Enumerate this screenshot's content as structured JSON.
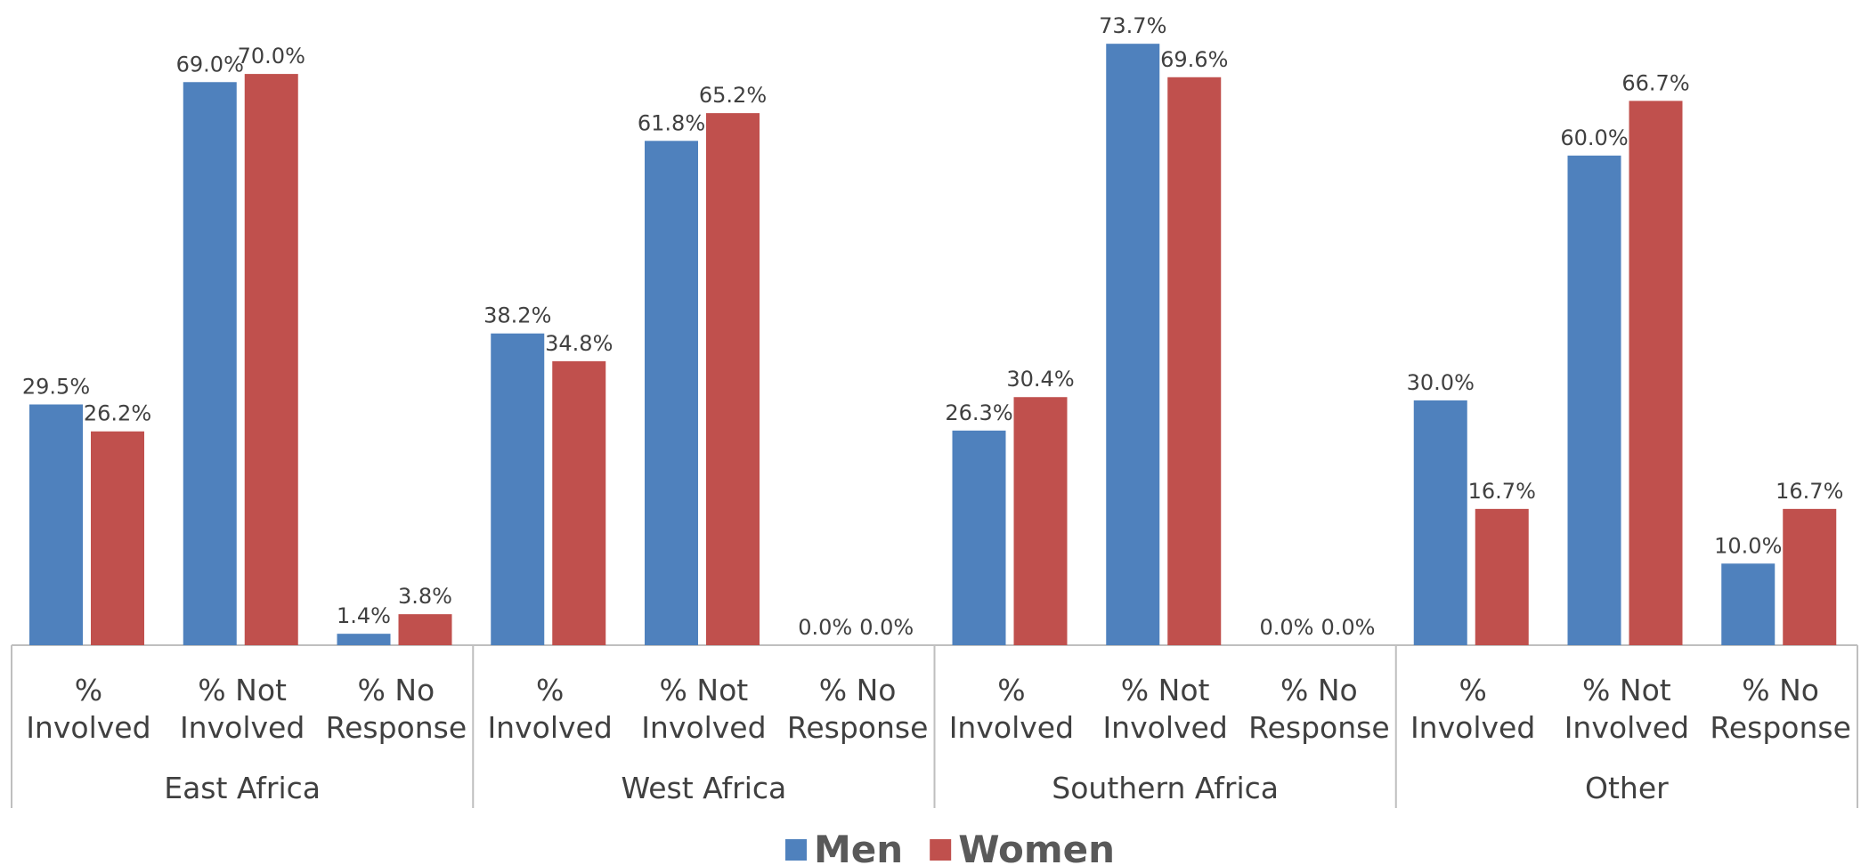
{
  "chart_data": {
    "type": "bar",
    "groups": [
      "East Africa",
      "West Africa",
      "Southern Africa",
      "Other"
    ],
    "categories": [
      "% Involved",
      "% Not Involved",
      "% No Response",
      "% Involved",
      "% Not Involved",
      "% No Response",
      "% Involved",
      "% Not Involved",
      "% No Response",
      "% Involved",
      "% Not Involved",
      "% No Response"
    ],
    "series": [
      {
        "name": "Men",
        "color": "#4f81bd",
        "values": [
          29.5,
          69.0,
          1.4,
          38.2,
          61.8,
          0.0,
          26.3,
          73.7,
          0.0,
          30.0,
          60.0,
          10.0
        ],
        "value_labels": [
          "29.5%",
          "69.0%",
          "1.4%",
          "38.2%",
          "61.8%",
          "0.0%",
          "26.3%",
          "73.7%",
          "0.0%",
          "30.0%",
          "60.0%",
          "10.0%"
        ]
      },
      {
        "name": "Women",
        "color": "#c0504d",
        "values": [
          26.2,
          70.0,
          3.8,
          34.8,
          65.2,
          0.0,
          30.4,
          69.6,
          0.0,
          16.7,
          66.7,
          16.7
        ],
        "value_labels": [
          "26.2%",
          "70.0%",
          "3.8%",
          "34.8%",
          "65.2%",
          "0.0%",
          "30.4%",
          "69.6%",
          "0.0%",
          "16.7%",
          "66.7%",
          "16.7%"
        ]
      }
    ],
    "legend": "bottom"
  }
}
